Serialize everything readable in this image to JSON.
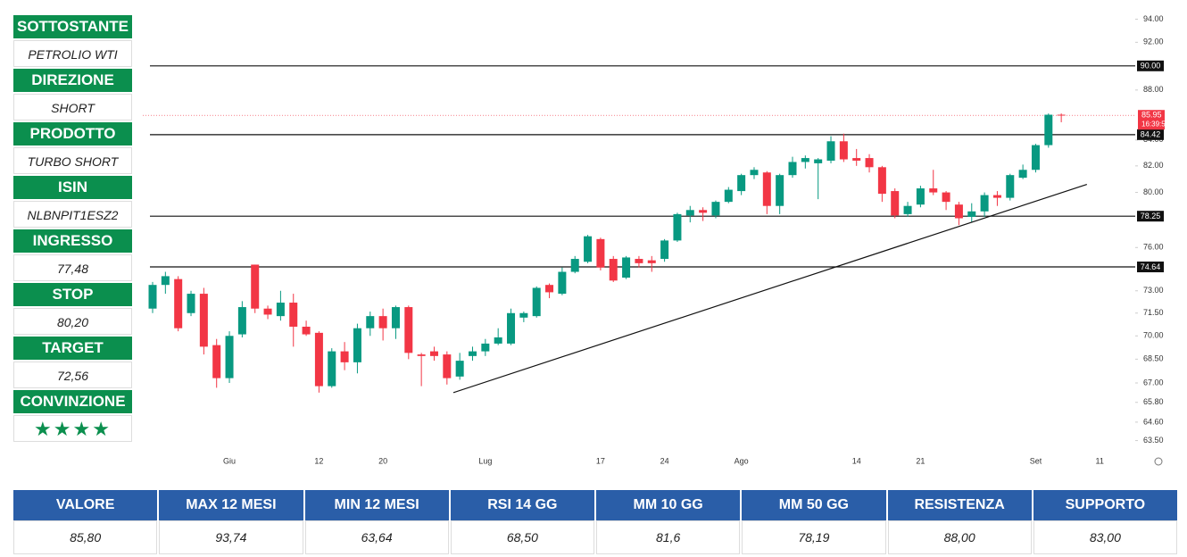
{
  "sidebar": [
    {
      "label": "SOTTOSTANTE",
      "value": "PETROLIO WTI"
    },
    {
      "label": "DIREZIONE",
      "value": "SHORT"
    },
    {
      "label": "PRODOTTO",
      "value": "TURBO SHORT"
    },
    {
      "label": "ISIN",
      "value": "NLBNPIT1ESZ2"
    },
    {
      "label": "INGRESSO",
      "value": "77,48"
    },
    {
      "label": "STOP",
      "value": "80,20"
    },
    {
      "label": "TARGET",
      "value": "72,56"
    },
    {
      "label": "CONVINZIONE",
      "value": "★★★★"
    }
  ],
  "chart_data": {
    "type": "candlestick",
    "log_scale": true,
    "up_color": "#089981",
    "down_color": "#f23645",
    "categories": [
      null,
      null,
      null,
      null,
      null,
      null,
      "Giu",
      null,
      null,
      null,
      null,
      null,
      null,
      "12",
      null,
      null,
      null,
      null,
      "20",
      null,
      null,
      null,
      null,
      null,
      null,
      null,
      "Lug",
      null,
      null,
      null,
      null,
      null,
      null,
      null,
      null,
      "17",
      null,
      null,
      null,
      null,
      "24",
      null,
      null,
      null,
      null,
      null,
      "Ago",
      null,
      null,
      null,
      null,
      null,
      null,
      null,
      null,
      "14",
      null,
      null,
      null,
      null,
      "21",
      null,
      null,
      null,
      null,
      null,
      null,
      null,
      null,
      "Set",
      null,
      null,
      null,
      null,
      "11"
    ],
    "open": [
      71.8,
      73.4,
      73.8,
      71.5,
      72.8,
      69.4,
      67.3,
      70.1,
      74.8,
      71.8,
      71.3,
      72.2,
      70.6,
      70.2,
      66.8,
      69.0,
      68.3,
      70.5,
      71.3,
      70.5,
      71.9,
      68.8,
      69.0,
      68.8,
      67.4,
      68.7,
      69.0,
      69.5,
      69.5,
      71.2,
      71.3,
      73.4,
      72.8,
      74.3,
      75.0,
      76.6,
      75.2,
      73.9,
      75.2,
      75.1,
      75.2,
      76.5,
      78.3,
      78.7,
      78.3,
      79.3,
      80.1,
      81.3,
      81.5,
      79.0,
      81.3,
      82.3,
      82.2,
      82.4,
      83.9,
      82.6,
      82.6,
      81.9,
      80.1,
      78.4,
      79.1,
      80.3,
      80.0,
      79.1,
      78.2,
      78.6,
      79.8,
      79.6,
      81.1,
      81.7,
      83.6,
      86.0,
      null,
      null,
      null
    ],
    "high": [
      73.6,
      74.3,
      74.0,
      73.0,
      73.2,
      69.8,
      70.3,
      72.3,
      74.8,
      72.0,
      73.0,
      72.8,
      71.0,
      70.3,
      69.2,
      69.6,
      70.8,
      71.6,
      71.8,
      72.0,
      72.0,
      68.9,
      69.3,
      69.0,
      68.9,
      69.3,
      69.8,
      70.5,
      71.8,
      71.6,
      73.3,
      73.5,
      74.6,
      75.4,
      76.9,
      76.7,
      75.4,
      75.4,
      75.4,
      75.4,
      76.6,
      78.5,
      79.0,
      78.9,
      79.4,
      80.4,
      81.4,
      81.9,
      81.6,
      81.4,
      82.7,
      82.8,
      82.6,
      84.3,
      84.5,
      83.3,
      82.9,
      82.0,
      80.3,
      79.3,
      80.5,
      81.7,
      80.1,
      79.3,
      79.2,
      80.0,
      80.1,
      81.4,
      82.1,
      83.7,
      86.1,
      86.1,
      null,
      null,
      null
    ],
    "low": [
      71.5,
      72.8,
      70.3,
      71.3,
      68.8,
      66.7,
      67.0,
      69.9,
      71.5,
      71.1,
      71.0,
      69.3,
      70.0,
      66.4,
      66.7,
      67.8,
      67.6,
      70.0,
      69.7,
      69.8,
      68.5,
      66.8,
      68.4,
      66.9,
      67.2,
      68.4,
      68.7,
      69.4,
      69.4,
      70.9,
      71.2,
      72.5,
      72.7,
      74.2,
      74.9,
      74.4,
      73.6,
      73.8,
      74.6,
      74.3,
      75.0,
      76.4,
      77.8,
      77.9,
      78.1,
      79.2,
      79.8,
      81.0,
      78.4,
      78.4,
      81.1,
      81.8,
      79.5,
      82.2,
      82.3,
      82.0,
      81.5,
      79.3,
      78.1,
      78.2,
      78.9,
      79.8,
      78.7,
      77.6,
      77.8,
      78.2,
      79.0,
      79.4,
      81.0,
      81.5,
      83.4,
      85.4,
      null,
      null,
      null
    ],
    "close": [
      73.4,
      74.0,
      70.5,
      72.8,
      69.3,
      67.3,
      70.0,
      71.9,
      71.8,
      71.4,
      72.2,
      70.6,
      70.1,
      66.8,
      69.0,
      68.3,
      70.5,
      71.3,
      70.5,
      71.9,
      68.9,
      68.7,
      68.7,
      67.3,
      68.4,
      69.0,
      69.5,
      69.9,
      71.5,
      71.5,
      73.2,
      72.9,
      74.3,
      75.2,
      76.8,
      74.6,
      73.7,
      75.3,
      74.9,
      74.9,
      76.5,
      78.4,
      78.7,
      78.5,
      79.3,
      80.2,
      81.3,
      81.7,
      79.0,
      81.3,
      82.3,
      82.6,
      82.5,
      83.9,
      82.5,
      82.4,
      81.9,
      79.9,
      78.3,
      79.0,
      80.3,
      80.0,
      79.3,
      78.1,
      78.6,
      79.8,
      79.6,
      81.3,
      81.7,
      83.6,
      86.0,
      85.95,
      null,
      null,
      null
    ],
    "ylim": [
      62.9,
      94.9
    ],
    "yticks": [
      {
        "value": 94,
        "label": "94.00"
      },
      {
        "value": 92,
        "label": "92.00"
      },
      {
        "value": 88,
        "label": "88.00"
      },
      {
        "value": 84,
        "label": "84.00"
      },
      {
        "value": 82,
        "label": "82.00"
      },
      {
        "value": 80,
        "label": "80.00"
      },
      {
        "value": 76,
        "label": "76.00"
      },
      {
        "value": 73,
        "label": "73.00"
      },
      {
        "value": 71.5,
        "label": "71.50"
      },
      {
        "value": 70,
        "label": "70.00"
      },
      {
        "value": 68.5,
        "label": "68.50"
      },
      {
        "value": 67,
        "label": "67.00"
      },
      {
        "value": 65.8,
        "label": "65.80"
      },
      {
        "value": 64.6,
        "label": "64.60"
      },
      {
        "value": 63.5,
        "label": "63.50"
      }
    ],
    "levels": [
      {
        "value": 90,
        "label": "90.00"
      },
      84.42,
      78.25,
      74.64
    ],
    "last_price": 85.95,
    "countdown": "16:39:57",
    "trendline": {
      "x": [
        23.5,
        73
      ],
      "y": [
        66.4,
        80.6
      ]
    }
  },
  "table": {
    "headers": [
      "VALORE",
      "MAX 12 MESI",
      "MIN 12 MESI",
      "RSI 14 GG",
      "MM 10 GG",
      "MM 50 GG",
      "RESISTENZA",
      "SUPPORTO"
    ],
    "values": [
      "85,80",
      "93,74",
      "63,64",
      "68,50",
      "81,6",
      "78,19",
      "88,00",
      "83,00"
    ]
  }
}
